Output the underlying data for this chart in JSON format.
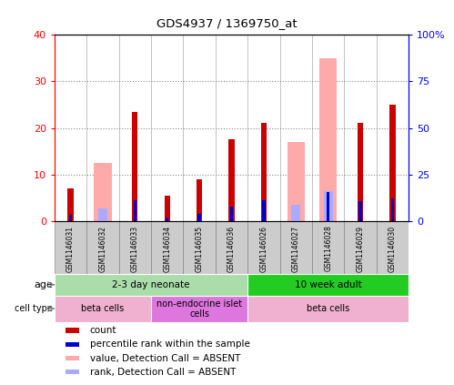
{
  "title": "GDS4937 / 1369750_at",
  "samples": [
    "GSM1146031",
    "GSM1146032",
    "GSM1146033",
    "GSM1146034",
    "GSM1146035",
    "GSM1146036",
    "GSM1146026",
    "GSM1146027",
    "GSM1146028",
    "GSM1146029",
    "GSM1146030"
  ],
  "count_values": [
    7,
    0,
    23.5,
    5.5,
    9,
    17.5,
    21,
    0,
    0,
    21,
    25
  ],
  "absent_value_values": [
    0,
    12.5,
    0,
    0,
    0,
    0,
    0,
    17,
    35,
    0,
    0
  ],
  "absent_rank_values": [
    0,
    7,
    0,
    0,
    0,
    0,
    0,
    9,
    16,
    0,
    0
  ],
  "rank_values": [
    3.5,
    0,
    11,
    2,
    4,
    8,
    11,
    0,
    15.5,
    10.5,
    12
  ],
  "ylim_left": [
    0,
    40
  ],
  "ylim_right": [
    0,
    100
  ],
  "yticks_left": [
    0,
    10,
    20,
    30,
    40
  ],
  "yticks_right": [
    0,
    25,
    50,
    75,
    100
  ],
  "yticklabels_right": [
    "0",
    "25",
    "50",
    "75",
    "100%"
  ],
  "age_groups": [
    {
      "label": "2-3 day neonate",
      "start": 0,
      "end": 6,
      "color": "#aaddaa"
    },
    {
      "label": "10 week adult",
      "start": 6,
      "end": 11,
      "color": "#22cc22"
    }
  ],
  "cell_type_groups": [
    {
      "label": "beta cells",
      "start": 0,
      "end": 3,
      "color": "#f0b0d0"
    },
    {
      "label": "non-endocrine islet\ncells",
      "start": 3,
      "end": 6,
      "color": "#dd77dd"
    },
    {
      "label": "beta cells",
      "start": 6,
      "end": 11,
      "color": "#f0b0d0"
    }
  ],
  "colors": {
    "count": "#cc0000",
    "rank": "#0000cc",
    "absent_value": "#ffaaaa",
    "absent_rank": "#aaaaff",
    "col_bg": "#cccccc"
  },
  "legend_items": [
    {
      "color": "#cc0000",
      "label": "count"
    },
    {
      "color": "#0000cc",
      "label": "percentile rank within the sample"
    },
    {
      "color": "#ffaaaa",
      "label": "value, Detection Call = ABSENT"
    },
    {
      "color": "#aaaaff",
      "label": "rank, Detection Call = ABSENT"
    }
  ]
}
